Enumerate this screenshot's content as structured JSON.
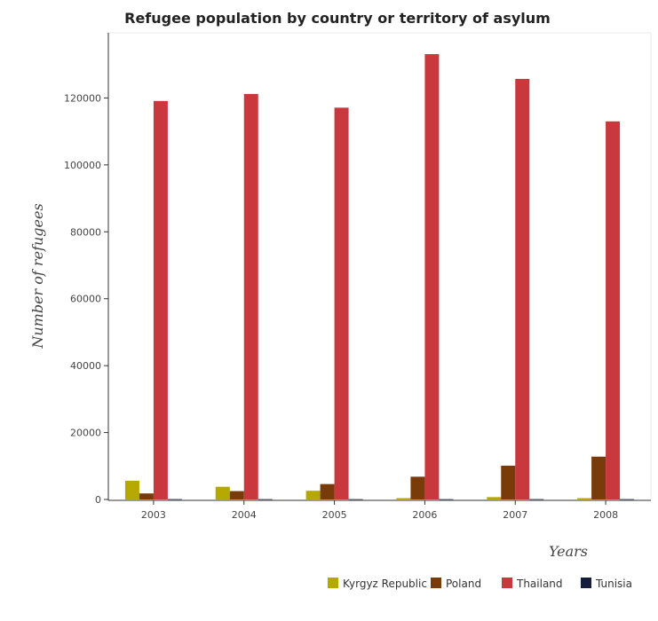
{
  "chart_data": {
    "type": "bar",
    "title": "Refugee population by country or territory of asylum",
    "xlabel": "Years",
    "ylabel": "Number of refugees",
    "categories": [
      "2003",
      "2004",
      "2005",
      "2006",
      "2007",
      "2008"
    ],
    "ylim": [
      0,
      140000
    ],
    "yticks": [
      0,
      20000,
      40000,
      60000,
      80000,
      100000,
      120000
    ],
    "ytick_labels": [
      "0",
      "20000",
      "40000",
      "60000",
      "80000",
      "100000",
      "120000"
    ],
    "grid": false,
    "legend_position": "bottom-right",
    "series": [
      {
        "name": "Kyrgyz Republic",
        "color": "#b5a800",
        "values": [
          5600,
          3800,
          2600,
          400,
          700,
          400
        ]
      },
      {
        "name": "Poland",
        "color": "#7a3b0a",
        "values": [
          1800,
          2500,
          4600,
          6800,
          10100,
          12800
        ]
      },
      {
        "name": "Thailand",
        "color": "#c8383c",
        "values": [
          119100,
          121200,
          117100,
          133100,
          125700,
          113000
        ]
      },
      {
        "name": "Tunisia",
        "color": "#151e3d",
        "values": [
          100,
          90,
          90,
          90,
          100,
          95
        ]
      }
    ]
  }
}
